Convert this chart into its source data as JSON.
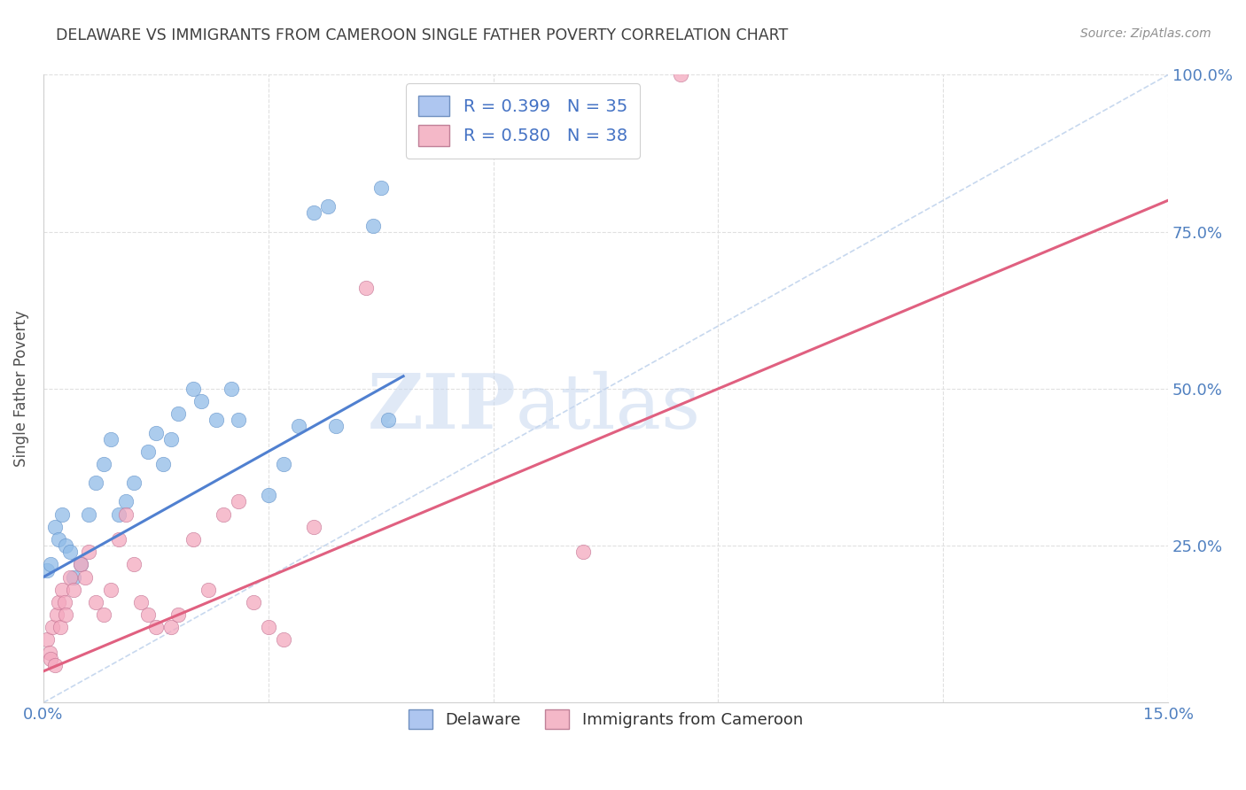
{
  "title": "DELAWARE VS IMMIGRANTS FROM CAMEROON SINGLE FATHER POVERTY CORRELATION CHART",
  "source": "Source: ZipAtlas.com",
  "ylabel": "Single Father Poverty",
  "xlim": [
    0.0,
    15.0
  ],
  "ylim": [
    0.0,
    100.0
  ],
  "ytick_values": [
    25.0,
    50.0,
    75.0,
    100.0
  ],
  "xtick_values": [
    0.0,
    3.0,
    6.0,
    9.0,
    12.0,
    15.0
  ],
  "legend_entries": [
    {
      "label": "R = 0.399   N = 35",
      "color": "#aec6f0"
    },
    {
      "label": "R = 0.580   N = 38",
      "color": "#f4b8c8"
    }
  ],
  "legend_bottom": [
    "Delaware",
    "Immigrants from Cameroon"
  ],
  "color_delaware": "#90bce8",
  "color_cameroon": "#f4a8be",
  "color_trendline_delaware": "#5080d0",
  "color_trendline_cameroon": "#e06080",
  "color_diagonal": "#b0c8e8",
  "delaware_x": [
    0.05,
    0.1,
    0.15,
    0.2,
    0.25,
    0.3,
    0.35,
    0.4,
    0.5,
    0.6,
    0.7,
    0.8,
    0.9,
    1.0,
    1.1,
    1.2,
    1.4,
    1.5,
    1.6,
    1.7,
    1.8,
    2.0,
    2.1,
    2.3,
    2.5,
    2.6,
    3.0,
    3.2,
    3.4,
    3.6,
    3.8,
    3.9,
    4.4,
    4.5,
    4.6
  ],
  "delaware_y": [
    21,
    22,
    28,
    26,
    30,
    25,
    24,
    20,
    22,
    30,
    35,
    38,
    42,
    30,
    32,
    35,
    40,
    43,
    38,
    42,
    46,
    50,
    48,
    45,
    50,
    45,
    33,
    38,
    44,
    78,
    79,
    44,
    76,
    82,
    45
  ],
  "cameroon_x": [
    0.05,
    0.08,
    0.1,
    0.12,
    0.15,
    0.18,
    0.2,
    0.22,
    0.25,
    0.28,
    0.3,
    0.35,
    0.4,
    0.5,
    0.55,
    0.6,
    0.7,
    0.8,
    0.9,
    1.0,
    1.1,
    1.2,
    1.3,
    1.4,
    1.5,
    1.7,
    1.8,
    2.0,
    2.2,
    2.4,
    2.6,
    2.8,
    3.0,
    3.2,
    3.6,
    4.3,
    7.2,
    8.5
  ],
  "cameroon_y": [
    10,
    8,
    7,
    12,
    6,
    14,
    16,
    12,
    18,
    16,
    14,
    20,
    18,
    22,
    20,
    24,
    16,
    14,
    18,
    26,
    30,
    22,
    16,
    14,
    12,
    12,
    14,
    26,
    18,
    30,
    32,
    16,
    12,
    10,
    28,
    66,
    24,
    100
  ],
  "trendline_del_x0": 0.0,
  "trendline_del_y0": 20.0,
  "trendline_del_x1": 4.8,
  "trendline_del_y1": 52.0,
  "trendline_cam_x0": 0.0,
  "trendline_cam_y0": 5.0,
  "trendline_cam_x1": 15.0,
  "trendline_cam_y1": 80.0,
  "watermark_zip": "ZIP",
  "watermark_atlas": "atlas",
  "background_color": "#ffffff",
  "grid_color": "#e0e0e0",
  "title_color": "#404040",
  "source_color": "#909090",
  "axis_tick_color": "#5080c0",
  "axis_label_color": "#505050"
}
